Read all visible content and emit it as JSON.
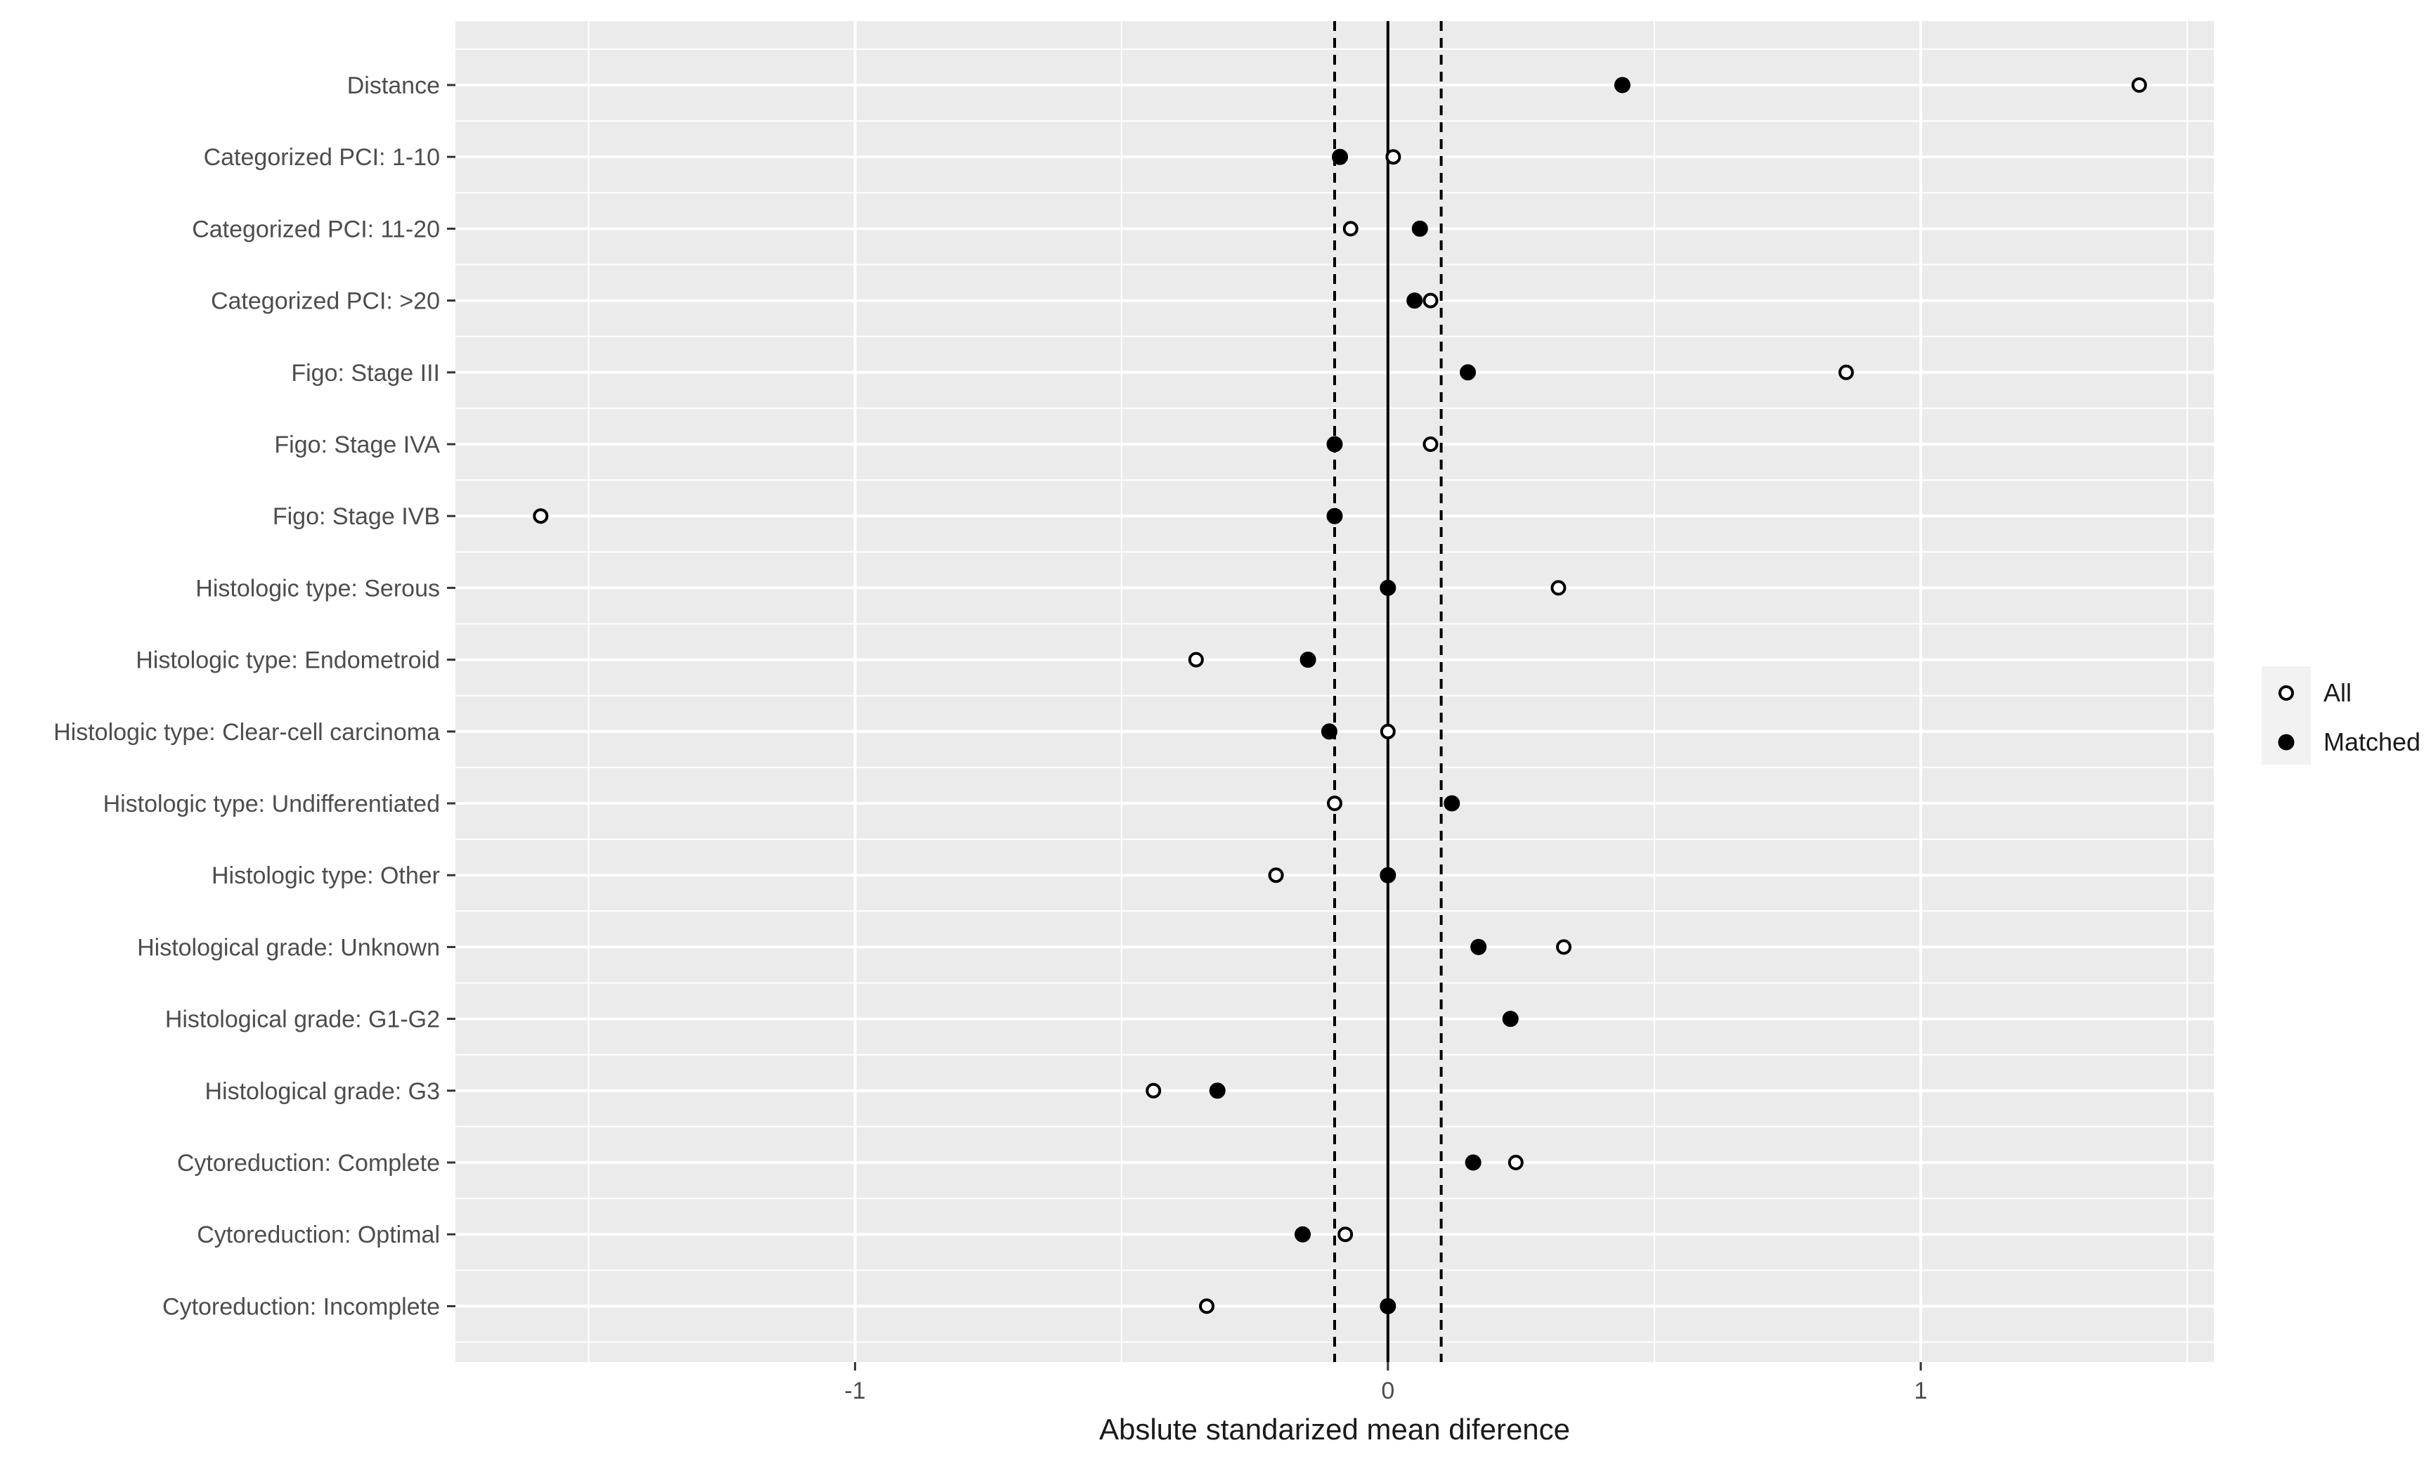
{
  "chart_data": {
    "type": "scatter",
    "title": "",
    "xlabel": "Abslute standarized mean diference",
    "ylabel": "",
    "xlim": [
      -1.75,
      1.55
    ],
    "x_ticks": [
      -1,
      0,
      1
    ],
    "x_tick_labels": [
      "-1",
      "0",
      "1"
    ],
    "reference_lines": {
      "solid": 0,
      "dashed": [
        -0.1,
        0.1
      ]
    },
    "grid": true,
    "legend_position": "right",
    "categories": [
      "Distance",
      "Categorized PCI: 1-10",
      "Categorized PCI: 11-20",
      "Categorized PCI: >20",
      "Figo: Stage III",
      "Figo: Stage IVA",
      "Figo: Stage IVB",
      "Histologic type: Serous",
      "Histologic type: Endometroid",
      "Histologic type: Clear-cell carcinoma",
      "Histologic type: Undifferentiated",
      "Histologic type: Other",
      "Histological grade: Unknown",
      "Histological grade: G1-G2",
      "Histological grade: G3",
      "Cytoreduction: Complete",
      "Cytoreduction: Optimal",
      "Cytoreduction: Incomplete"
    ],
    "series": [
      {
        "name": "All",
        "marker": "open-circle",
        "values": [
          1.41,
          0.01,
          -0.07,
          0.08,
          0.86,
          0.08,
          -1.59,
          0.32,
          -0.36,
          0.0,
          -0.1,
          -0.21,
          0.33,
          null,
          -0.44,
          0.24,
          -0.08,
          -0.34
        ]
      },
      {
        "name": "Matched",
        "marker": "filled-circle",
        "values": [
          0.44,
          -0.09,
          0.06,
          0.05,
          0.15,
          -0.1,
          -0.1,
          0.0,
          -0.15,
          -0.11,
          0.12,
          0.0,
          0.17,
          0.23,
          -0.32,
          0.16,
          -0.16,
          0.0
        ]
      }
    ],
    "colors": {
      "panel_background": "#ebebeb",
      "grid": "#ffffff",
      "point_fill_all": "#ffffff",
      "point_fill_matched": "#000000",
      "point_stroke": "#000000"
    }
  }
}
